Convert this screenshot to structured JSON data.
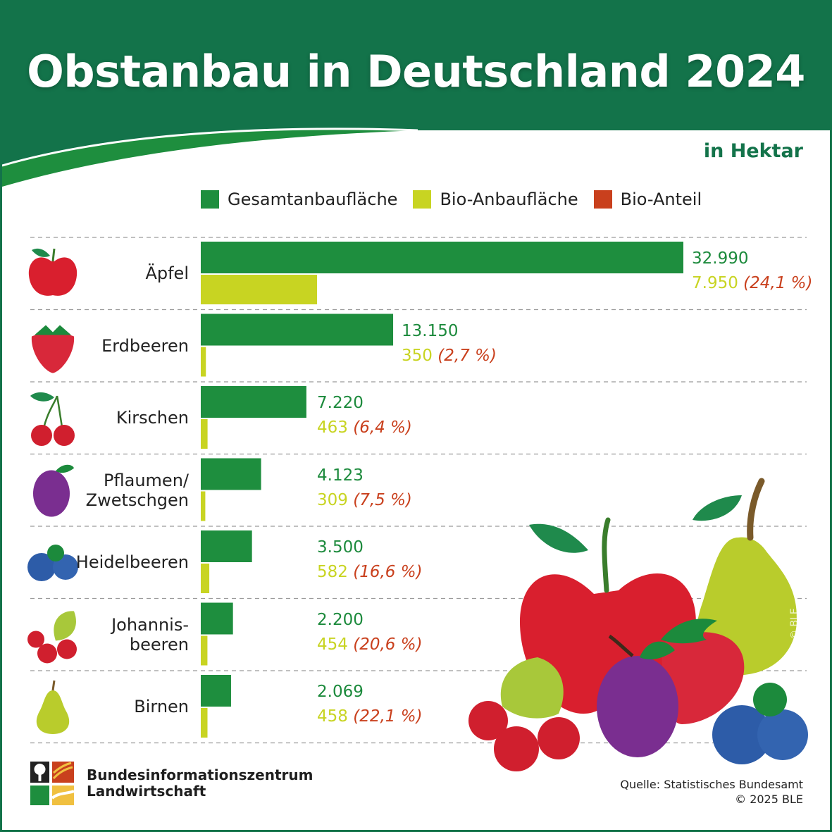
{
  "title": "Obstanbau in Deutschland 2024",
  "unit_label": "in Hektar",
  "legend": [
    {
      "label": "Gesamtanbaufläche",
      "color": "#1e8e3e"
    },
    {
      "label": "Bio-Anbaufläche",
      "color": "#c8d422"
    },
    {
      "label": "Bio-Anteil",
      "color": "#c9401d"
    }
  ],
  "chart_data": {
    "type": "bar",
    "orientation": "horizontal",
    "title": "Obstanbau in Deutschland 2024",
    "unit": "in Hektar",
    "categories": [
      "Äpfel",
      "Erdbeeren",
      "Kirschen",
      "Pflaumen/ Zwetschgen",
      "Heidelbeeren",
      "Johannis- beeren",
      "Birnen"
    ],
    "category_lines": [
      [
        "Äpfel"
      ],
      [
        "Erdbeeren"
      ],
      [
        "Kirschen"
      ],
      [
        "Pflaumen/",
        "Zwetschgen"
      ],
      [
        "Heidelbeeren"
      ],
      [
        "Johannis-",
        "beeren"
      ],
      [
        "Birnen"
      ]
    ],
    "series": [
      {
        "name": "Gesamtanbaufläche",
        "color": "#1e8e3e",
        "values": [
          32990,
          13150,
          7220,
          4123,
          3500,
          2200,
          2069
        ]
      },
      {
        "name": "Bio-Anbaufläche",
        "color": "#c8d422",
        "values": [
          7950,
          350,
          463,
          309,
          582,
          454,
          458
        ]
      },
      {
        "name": "Bio-Anteil",
        "color": "#c9401d",
        "unit": "%",
        "values": [
          24.1,
          2.7,
          6.4,
          7.5,
          16.6,
          20.6,
          22.1
        ]
      }
    ],
    "value_labels": {
      "total": [
        "32.990",
        "13.150",
        "7.220",
        "4.123",
        "3.500",
        "2.200",
        "2.069"
      ],
      "bio": [
        "7.950",
        "350",
        "463",
        "309",
        "582",
        "454",
        "458"
      ],
      "share": [
        "(24,1 %)",
        "(2,7 %)",
        "(6,4 %)",
        "(7,5 %)",
        "(16,6 %)",
        "(20,6 %)",
        "(22,1 %)"
      ]
    },
    "icons": [
      "apple-icon",
      "strawberry-icon",
      "cherries-icon",
      "plum-icon",
      "blueberries-icon",
      "currants-icon",
      "pear-icon"
    ],
    "xlim": [
      0,
      32990
    ],
    "grid": false,
    "legend_position": "top"
  },
  "footer": {
    "org_line1": "Bundesinformationszentrum",
    "org_line2": "Landwirtschaft",
    "source": "Quelle: Statistisches Bundesamt",
    "copyright": "© 2025 BLE",
    "illustration_copyright": "© BLE"
  }
}
